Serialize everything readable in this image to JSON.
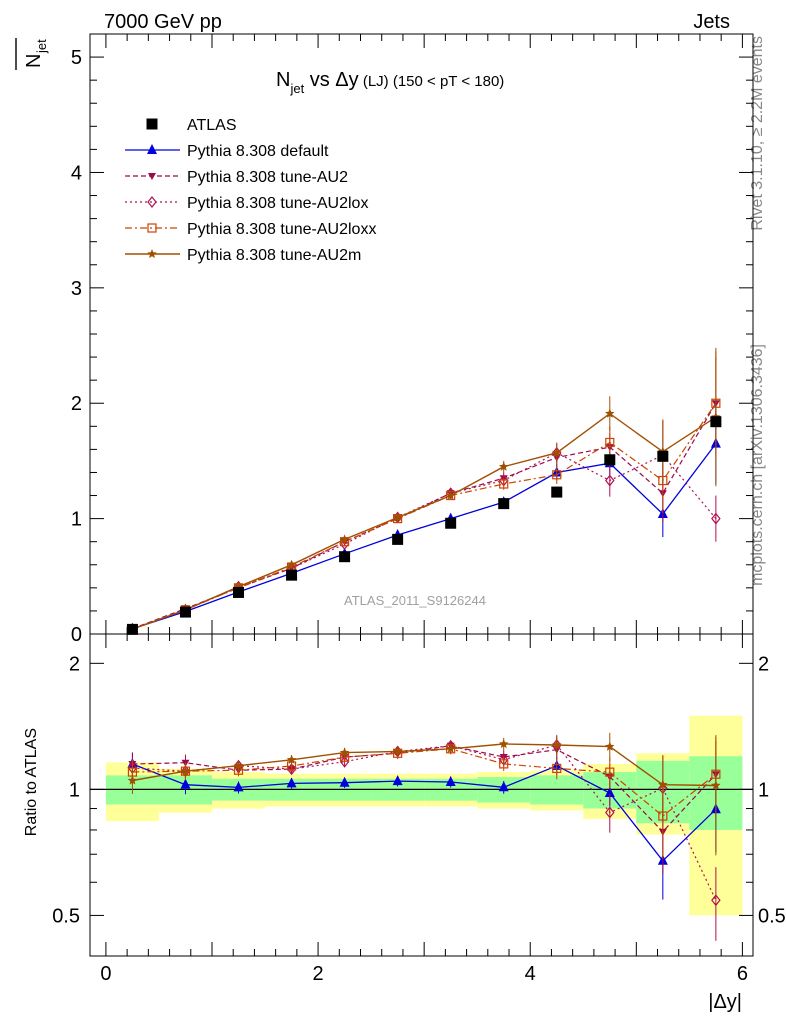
{
  "header": {
    "left": "7000 GeV pp",
    "right": "Jets"
  },
  "side": {
    "rivet": "Rivet 3.1.10, ≥ 2.2M events",
    "mcplots": "mcplots.cern.ch [arXiv:1306.3436]"
  },
  "chart_data": {
    "type": "line",
    "title": {
      "main": "N",
      "sub": "jet",
      "mid": " vs Δy",
      "small": " (LJ)",
      "cut": " (150 < pT < 180)"
    },
    "watermark": "ATLAS_2011_S9126244",
    "xlabel": "|Δy|",
    "ylabel": {
      "main": "N",
      "sub": "jet"
    },
    "ratio_ylabel": "Ratio to ATLAS",
    "xlim": [
      -0.15,
      6.1
    ],
    "ylim": [
      0,
      5.2
    ],
    "ratio_ylim": [
      0.4,
      2.35
    ],
    "x_ticks": [
      "0",
      "2",
      "4",
      "6"
    ],
    "y_ticks": [
      "0",
      "1",
      "2",
      "3",
      "4",
      "5"
    ],
    "ratio_ticks": [
      "0.5",
      "1",
      "2"
    ],
    "x": [
      0.25,
      0.75,
      1.25,
      1.75,
      2.25,
      2.75,
      3.25,
      3.75,
      4.25,
      4.75,
      5.25,
      5.75
    ],
    "data": {
      "name": "ATLAS",
      "values": [
        0.04,
        0.19,
        0.36,
        0.51,
        0.67,
        0.82,
        0.96,
        1.13,
        1.23,
        1.51,
        1.54,
        1.84
      ],
      "band_inner": [
        0.08,
        0.08,
        0.06,
        0.06,
        0.06,
        0.06,
        0.06,
        0.07,
        0.08,
        0.1,
        0.17,
        0.2
      ],
      "band_outer": [
        0.16,
        0.12,
        0.1,
        0.09,
        0.09,
        0.09,
        0.09,
        0.1,
        0.11,
        0.15,
        0.22,
        0.5
      ]
    },
    "series": [
      {
        "name": "Pythia 8.308 default",
        "color": "#0000dd",
        "values": [
          0.046,
          0.195,
          0.364,
          0.527,
          0.695,
          0.858,
          1.0,
          1.143,
          1.4,
          1.48,
          1.04,
          1.65
        ],
        "errors": [
          0.003,
          0.01,
          0.012,
          0.015,
          0.02,
          0.025,
          0.03,
          0.04,
          0.07,
          0.1,
          0.2,
          0.35
        ]
      },
      {
        "name": "Pythia 8.308 tune-AU2",
        "color": "#9a0a4a",
        "values": [
          0.046,
          0.22,
          0.4,
          0.57,
          0.8,
          1.0,
          1.22,
          1.35,
          1.53,
          1.62,
          1.22,
          2.0
        ],
        "errors": [
          0.003,
          0.01,
          0.013,
          0.016,
          0.022,
          0.03,
          0.035,
          0.05,
          0.08,
          0.12,
          0.25,
          0.4
        ]
      },
      {
        "name": "Pythia 8.308 tune-AU2lox",
        "color": "#b01050",
        "values": [
          0.045,
          0.21,
          0.41,
          0.57,
          0.78,
          1.01,
          1.22,
          1.33,
          1.57,
          1.33,
          1.55,
          1.0
        ],
        "errors": [
          0.003,
          0.01,
          0.013,
          0.016,
          0.022,
          0.03,
          0.035,
          0.05,
          0.08,
          0.14,
          0.3,
          0.2
        ]
      },
      {
        "name": "Pythia 8.308 tune-AU2loxx",
        "color": "#cc4400",
        "values": [
          0.044,
          0.21,
          0.4,
          0.58,
          0.8,
          1.0,
          1.2,
          1.3,
          1.38,
          1.66,
          1.33,
          2.0
        ],
        "errors": [
          0.003,
          0.01,
          0.013,
          0.016,
          0.022,
          0.03,
          0.035,
          0.05,
          0.08,
          0.14,
          0.28,
          0.45
        ]
      },
      {
        "name": "Pythia 8.308 tune-AU2m",
        "color": "#a05000",
        "values": [
          0.042,
          0.21,
          0.41,
          0.6,
          0.82,
          1.01,
          1.2,
          1.45,
          1.57,
          1.91,
          1.58,
          1.88
        ],
        "errors": [
          0.003,
          0.01,
          0.013,
          0.016,
          0.022,
          0.03,
          0.035,
          0.05,
          0.09,
          0.15,
          0.28,
          0.6
        ]
      }
    ]
  }
}
